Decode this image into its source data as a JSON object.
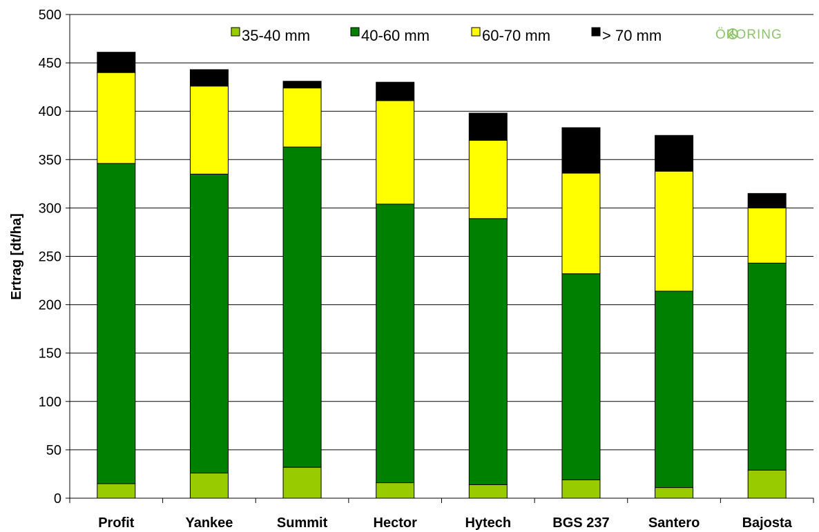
{
  "chart_data": {
    "type": "bar",
    "stacked": true,
    "categories": [
      "Profit",
      "Yankee",
      "Summit",
      "Hector",
      "Hytech",
      "BGS 237",
      "Santero",
      "Bajosta"
    ],
    "series": [
      {
        "name": "35-40 mm",
        "color": "#99cc00",
        "values": [
          15,
          26,
          32,
          16,
          14,
          19,
          11,
          29
        ]
      },
      {
        "name": "40-60 mm",
        "color": "#008000",
        "values": [
          331,
          309,
          331,
          288,
          275,
          213,
          203,
          214
        ]
      },
      {
        "name": "60-70 mm",
        "color": "#ffff00",
        "values": [
          94,
          91,
          61,
          107,
          81,
          104,
          124,
          57
        ]
      },
      {
        "name": "> 70 mm",
        "color": "#000000",
        "values": [
          21,
          17,
          7,
          19,
          28,
          47,
          37,
          15
        ]
      }
    ],
    "title": "",
    "xlabel": "",
    "ylabel": "Ertrag [dt/ha]",
    "ylim": [
      0,
      500
    ],
    "yticks": [
      0,
      50,
      100,
      150,
      200,
      250,
      300,
      350,
      400,
      450,
      500
    ],
    "grid": "horizontal",
    "legend_position": "top"
  },
  "logo": {
    "text": "ÖKORING",
    "icon": "okoring-logo-icon"
  }
}
